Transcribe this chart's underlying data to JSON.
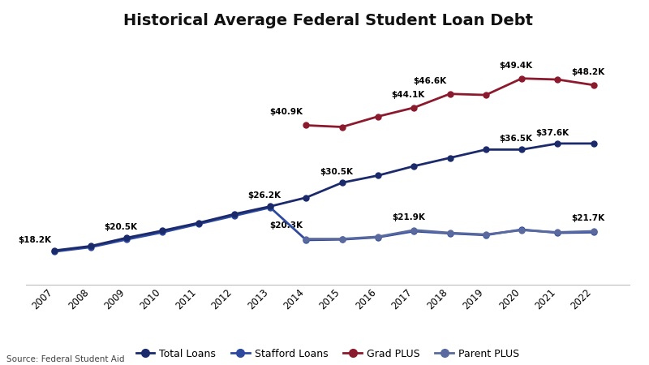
{
  "title": "Historical Average Federal Student Loan Debt",
  "source": "Source: Federal Student Aid",
  "years_total": [
    2007,
    2008,
    2009,
    2010,
    2011,
    2012,
    2013,
    2014,
    2015,
    2016,
    2017,
    2018,
    2019,
    2020,
    2021,
    2022
  ],
  "total_loans": [
    18.2,
    19.0,
    20.5,
    21.8,
    23.2,
    24.8,
    26.2,
    27.8,
    30.5,
    31.8,
    33.5,
    35.0,
    36.5,
    36.5,
    37.6,
    37.6
  ],
  "years_stafford": [
    2007,
    2008,
    2009,
    2010,
    2011,
    2012,
    2013,
    2014,
    2015,
    2016,
    2017,
    2018,
    2019,
    2020,
    2021,
    2022
  ],
  "stafford_loans": [
    18.0,
    18.8,
    20.2,
    21.5,
    23.0,
    24.5,
    26.0,
    20.1,
    20.2,
    20.6,
    21.7,
    21.3,
    21.0,
    22.0,
    21.4,
    21.5
  ],
  "years_grad": [
    2014,
    2015,
    2016,
    2017,
    2018,
    2019,
    2020,
    2021,
    2022
  ],
  "grad_plus": [
    40.9,
    40.6,
    42.5,
    44.1,
    46.6,
    46.4,
    49.4,
    49.2,
    48.2
  ],
  "years_parent": [
    2014,
    2015,
    2016,
    2017,
    2018,
    2019,
    2020,
    2021,
    2022
  ],
  "parent_plus": [
    20.3,
    20.3,
    20.7,
    21.9,
    21.4,
    21.1,
    21.9,
    21.5,
    21.7
  ],
  "color_total": "#1b2a6b",
  "color_stafford": "#2e4a9e",
  "color_grad": "#8b1a2e",
  "color_parent": "#5a6a9e",
  "background": "#ffffff",
  "ylim": [
    12,
    57
  ],
  "annotations_total": [
    [
      2007,
      18.2,
      "$18.2K",
      -18,
      6
    ],
    [
      2009,
      20.5,
      "$20.5K",
      -5,
      6
    ],
    [
      2013,
      26.2,
      "$26.2K",
      -5,
      6
    ],
    [
      2015,
      30.5,
      "$30.5K",
      -5,
      6
    ],
    [
      2020,
      36.5,
      "$36.5K",
      -5,
      6
    ],
    [
      2021,
      37.6,
      "$37.6K",
      -5,
      6
    ]
  ],
  "annotations_grad": [
    [
      2014,
      40.9,
      "$40.9K",
      -18,
      8
    ],
    [
      2017,
      44.1,
      "$44.1K",
      -5,
      8
    ],
    [
      2018,
      46.6,
      "$46.6K",
      -18,
      8
    ],
    [
      2020,
      49.4,
      "$49.4K",
      -5,
      8
    ],
    [
      2022,
      48.2,
      "$48.2K",
      -5,
      8
    ]
  ],
  "annotations_parent": [
    [
      2014,
      20.3,
      "$20.3K",
      -18,
      8
    ],
    [
      2017,
      21.9,
      "$21.9K",
      -5,
      8
    ],
    [
      2022,
      21.7,
      "$21.7K",
      -5,
      8
    ]
  ]
}
